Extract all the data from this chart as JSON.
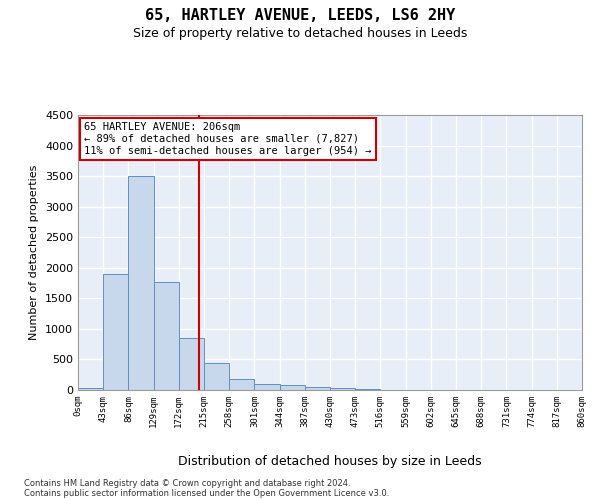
{
  "title": "65, HARTLEY AVENUE, LEEDS, LS6 2HY",
  "subtitle": "Size of property relative to detached houses in Leeds",
  "xlabel": "Distribution of detached houses by size in Leeds",
  "ylabel": "Number of detached properties",
  "bin_width": 43,
  "bin_starts": [
    0,
    43,
    86,
    129,
    172,
    215,
    258,
    301,
    344,
    387,
    430,
    473,
    516,
    559,
    602,
    645,
    688,
    731,
    774,
    817
  ],
  "bar_heights": [
    40,
    1900,
    3500,
    1775,
    850,
    450,
    175,
    100,
    75,
    55,
    40,
    15,
    5,
    3,
    2,
    1,
    1,
    0,
    0,
    0
  ],
  "bar_color": "#c8d8ec",
  "bar_edge_color": "#6090c0",
  "property_size": 206,
  "vline_color": "#cc0000",
  "annotation_text": "65 HARTLEY AVENUE: 206sqm\n← 89% of detached houses are smaller (7,827)\n11% of semi-detached houses are larger (954) →",
  "annotation_box_color": "#ffffff",
  "annotation_box_edge": "#cc0000",
  "ylim": [
    0,
    4500
  ],
  "yticks": [
    0,
    500,
    1000,
    1500,
    2000,
    2500,
    3000,
    3500,
    4000,
    4500
  ],
  "bg_color": "#ffffff",
  "plot_bg_color": "#e8eef8",
  "grid_color": "#ffffff",
  "footer_line1": "Contains HM Land Registry data © Crown copyright and database right 2024.",
  "footer_line2": "Contains public sector information licensed under the Open Government Licence v3.0.",
  "tick_labels": [
    "0sqm",
    "43sqm",
    "86sqm",
    "129sqm",
    "172sqm",
    "215sqm",
    "258sqm",
    "301sqm",
    "344sqm",
    "387sqm",
    "430sqm",
    "473sqm",
    "516sqm",
    "559sqm",
    "602sqm",
    "645sqm",
    "688sqm",
    "731sqm",
    "774sqm",
    "817sqm",
    "860sqm"
  ]
}
